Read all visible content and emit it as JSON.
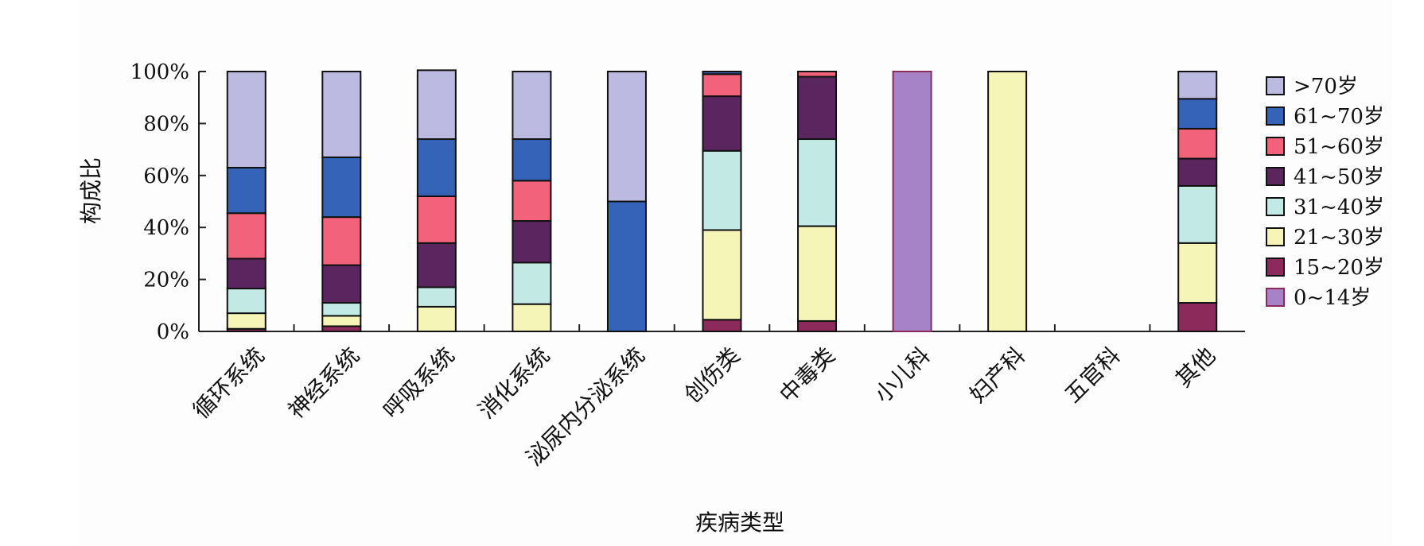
{
  "chart_data": {
    "type": "bar",
    "stacked": true,
    "normalized": true,
    "xlabel": "疾病类型",
    "ylabel": "构成比",
    "ylim": [
      0,
      100
    ],
    "y_ticks": [
      "0%",
      "20%",
      "40%",
      "60%",
      "80%",
      "100%"
    ],
    "categories": [
      "循环系统",
      "神经系统",
      "呼吸系统",
      "消化系统",
      "泌尿内分泌系统",
      "创伤类",
      "中毒类",
      "小儿科",
      "妇产科",
      "五官科",
      "其他"
    ],
    "series": [
      {
        "name": "0~14岁",
        "color": "#a583c6",
        "values": [
          0,
          0,
          0,
          0,
          0,
          0,
          0,
          100,
          0,
          0,
          0
        ]
      },
      {
        "name": "15~20岁",
        "color": "#8c2a5c",
        "values": [
          1,
          2,
          0,
          0,
          0,
          4.5,
          4,
          0,
          0,
          0,
          11
        ]
      },
      {
        "name": "21~30岁",
        "color": "#f5f5b8",
        "values": [
          6,
          4,
          9.5,
          10.5,
          0,
          34.5,
          36.5,
          0,
          100,
          0,
          23
        ]
      },
      {
        "name": "31~40岁",
        "color": "#c3e9e5",
        "values": [
          9.5,
          5,
          7.5,
          16,
          0,
          30.5,
          33.5,
          0,
          0,
          0,
          22
        ]
      },
      {
        "name": "41~50岁",
        "color": "#5b2660",
        "values": [
          11.5,
          14.5,
          17,
          16,
          0,
          21,
          24,
          0,
          0,
          0,
          10.5
        ]
      },
      {
        "name": "51~60岁",
        "color": "#f2627a",
        "values": [
          17.5,
          18.5,
          18,
          15.5,
          0,
          8.5,
          2,
          0,
          0,
          0,
          11.5
        ]
      },
      {
        "name": "61~70岁",
        "color": "#3563b8",
        "values": [
          17.5,
          23,
          22,
          16,
          50,
          1,
          0,
          0,
          0,
          0,
          11.5
        ]
      },
      {
        "name": ">70岁",
        "color": "#bcbae0",
        "values": [
          37,
          33,
          26.5,
          26,
          50,
          0,
          0,
          0,
          0,
          0,
          10.5
        ]
      }
    ],
    "legend_placement": "right",
    "legend_order": [
      ">70岁",
      "61~70岁",
      "51~60岁",
      "41~50岁",
      "31~40岁",
      "21~30岁",
      "15~20岁",
      "0~14岁"
    ],
    "grid": false
  }
}
